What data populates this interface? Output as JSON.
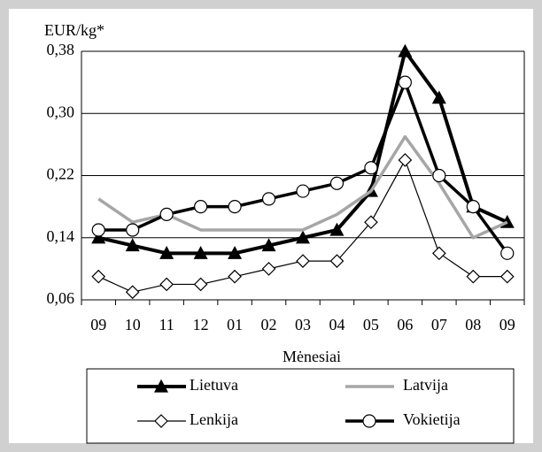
{
  "chart_data": {
    "type": "line",
    "ylabel": "EUR/kg*",
    "xlabel": "Mėnesiai",
    "categories": [
      "09",
      "10",
      "11",
      "12",
      "01",
      "02",
      "03",
      "04",
      "05",
      "06",
      "07",
      "08",
      "09"
    ],
    "series": [
      {
        "name": "Lietuva",
        "color": "#000000",
        "marker": "triangle",
        "values": [
          0.14,
          0.13,
          0.12,
          0.12,
          0.12,
          0.13,
          0.14,
          0.15,
          0.2,
          0.38,
          0.32,
          0.18,
          0.16
        ]
      },
      {
        "name": "Latvija",
        "color": "#a6a6a6",
        "marker": "none",
        "values": [
          0.19,
          0.16,
          0.17,
          0.15,
          0.15,
          0.15,
          0.15,
          0.17,
          0.2,
          0.27,
          0.21,
          0.14,
          0.16
        ]
      },
      {
        "name": "Lenkija",
        "color": "#000000",
        "marker": "diamond",
        "values": [
          0.09,
          0.07,
          0.08,
          0.08,
          0.09,
          0.1,
          0.11,
          0.11,
          0.16,
          0.24,
          0.12,
          0.09,
          0.09
        ]
      },
      {
        "name": "Vokietija",
        "color": "#000000",
        "marker": "circle",
        "values": [
          0.15,
          0.15,
          0.17,
          0.18,
          0.18,
          0.19,
          0.2,
          0.21,
          0.23,
          0.34,
          0.22,
          0.18,
          0.12
        ]
      }
    ],
    "ylim": [
      0.06,
      0.38
    ],
    "yticks": [
      {
        "value": 0.06,
        "label": "0,06"
      },
      {
        "value": 0.14,
        "label": "0,14"
      },
      {
        "value": 0.22,
        "label": "0,22"
      },
      {
        "value": 0.3,
        "label": "0,30"
      },
      {
        "value": 0.38,
        "label": "0,38"
      }
    ],
    "grid": true
  }
}
